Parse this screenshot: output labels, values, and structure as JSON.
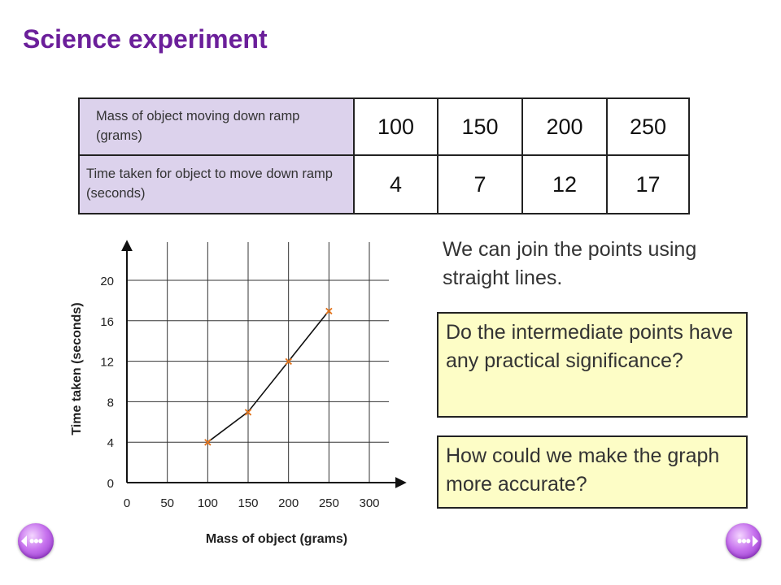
{
  "title": "Science experiment",
  "table": {
    "row1_label": "Mass of object moving down ramp (grams)",
    "row2_label": "Time taken for object to move down ramp (seconds)",
    "masses": [
      "100",
      "150",
      "200",
      "250"
    ],
    "times": [
      "4",
      "7",
      "12",
      "17"
    ]
  },
  "chart_data": {
    "type": "line",
    "xlabel": "Mass of object (grams)",
    "ylabel": "Time taken (seconds)",
    "x_ticks": [
      0,
      50,
      100,
      150,
      200,
      250,
      300
    ],
    "y_ticks": [
      0,
      4,
      8,
      12,
      16,
      20
    ],
    "xlim": [
      0,
      340
    ],
    "ylim": [
      0,
      24
    ],
    "grid": true,
    "marker": "×",
    "marker_color": "#e2741d",
    "x": [
      100,
      150,
      200,
      250
    ],
    "y": [
      4,
      7,
      12,
      17
    ]
  },
  "note": "We can join the points using straight lines.",
  "question1": "Do the intermediate points have any practical significance?",
  "question2": "How could we make the graph more accurate?",
  "nav": {
    "prev_icon": "previous-arrow-icon",
    "next_icon": "next-arrow-icon",
    "glyph": "•••"
  }
}
